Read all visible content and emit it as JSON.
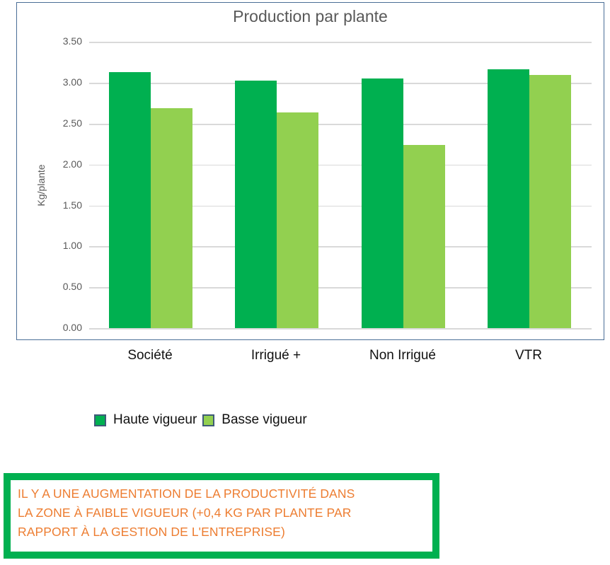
{
  "chart_data": {
    "type": "bar",
    "title": "Production par plante",
    "xlabel": "",
    "ylabel": "Kg/plante",
    "ylim": [
      0,
      3.5
    ],
    "yticks": [
      "0.00",
      "0.50",
      "1.00",
      "1.50",
      "2.00",
      "2.50",
      "3.00",
      "3.50"
    ],
    "grid": true,
    "legend_position": "bottom",
    "categories": [
      "Société",
      "Irrigué +",
      "Non Irrigué",
      "VTR"
    ],
    "series": [
      {
        "name": "Haute vigueur",
        "color": "#00b050",
        "values": [
          3.13,
          3.03,
          3.05,
          3.17
        ]
      },
      {
        "name": "Basse vigueur",
        "color": "#92d050",
        "values": [
          2.69,
          2.64,
          2.24,
          3.1
        ]
      }
    ]
  },
  "note": {
    "lines": [
      "IL Y A UNE AUGMENTATION DE LA PRODUCTIVITÉ DANS",
      "LA ZONE À FAIBLE VIGUEUR (+0,4 KG PAR PLANTE PAR",
      "RAPPORT À LA GESTION DE L'ENTREPRISE)"
    ],
    "border_color": "#00b050",
    "text_color": "#ed7d31"
  }
}
